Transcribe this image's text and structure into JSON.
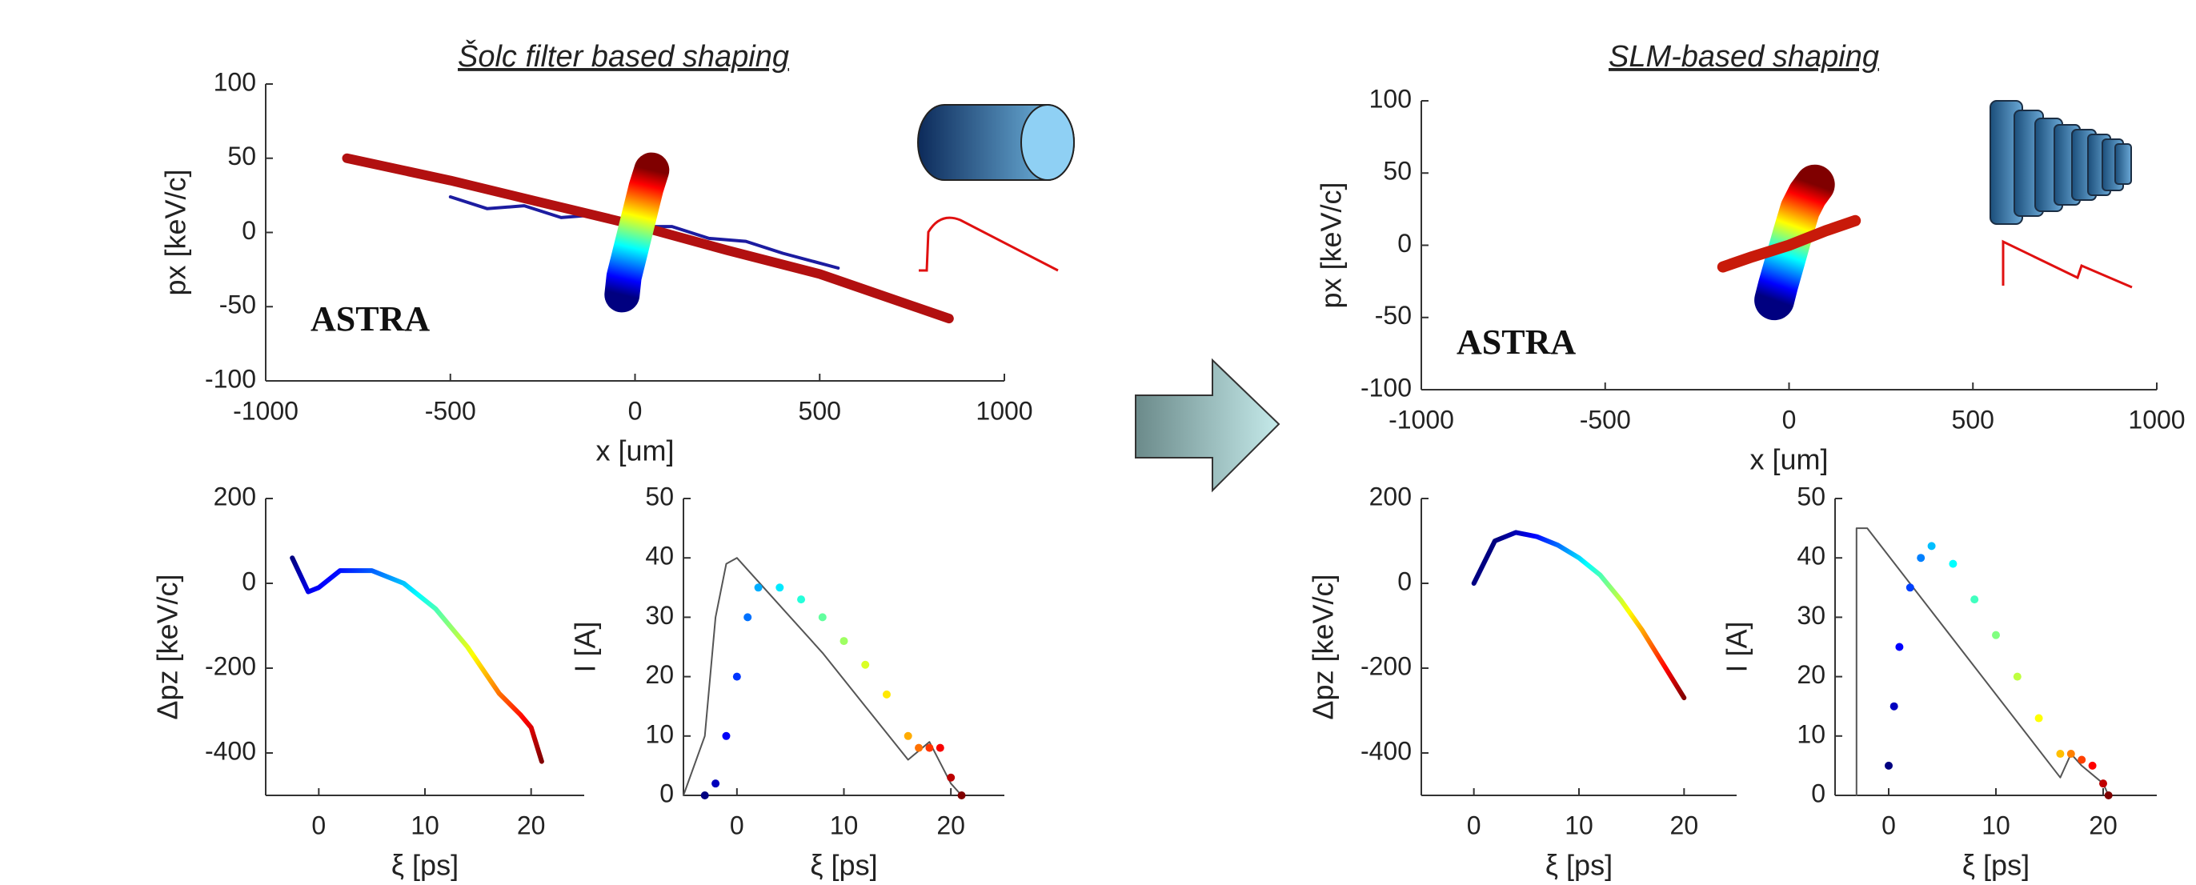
{
  "sections": [
    {
      "title": "Šolc filter based shaping"
    },
    {
      "title": "SLM-based shaping"
    }
  ],
  "chart_data": [
    {
      "type": "line",
      "xlabel": "x [um]",
      "ylabel": "px [keV/c]",
      "annotation": "ASTRA",
      "xlim": [
        -1000,
        1000
      ],
      "ylim": [
        -100,
        100
      ],
      "xticks": [
        -1000,
        -500,
        0,
        500,
        1000
      ],
      "yticks": [
        -100,
        -50,
        0,
        50,
        100
      ],
      "series": [
        {
          "mode": "line",
          "color": "#1c1ca0",
          "width": 4,
          "x": [
            -500,
            -400,
            -300,
            -200,
            -100,
            0,
            100,
            200,
            300,
            400,
            550
          ],
          "values": [
            24,
            16,
            18,
            10,
            12,
            4,
            4,
            -4,
            -6,
            -14,
            -24
          ]
        },
        {
          "mode": "line",
          "color": "#b21010",
          "width": 12,
          "x": [
            -780,
            -500,
            -250,
            0,
            250,
            500,
            850
          ],
          "values": [
            50,
            35,
            20,
            5,
            -12,
            -28,
            -58
          ]
        },
        {
          "mode": "line",
          "colormap": "jet",
          "width": 44,
          "x": [
            -35,
            -30,
            -15,
            0,
            15,
            30,
            45
          ],
          "values": [
            -42,
            -30,
            -15,
            0,
            15,
            30,
            42
          ]
        }
      ]
    },
    {
      "type": "line",
      "xlabel": "x [um]",
      "ylabel": "px [keV/c]",
      "annotation": "ASTRA",
      "xlim": [
        -1000,
        1000
      ],
      "ylim": [
        -100,
        100
      ],
      "xticks": [
        -1000,
        -500,
        0,
        500,
        1000
      ],
      "yticks": [
        -100,
        -50,
        0,
        50,
        100
      ],
      "series": [
        {
          "mode": "line",
          "colormap": "jet",
          "width": 50,
          "x": [
            -40,
            -30,
            -10,
            10,
            30,
            50,
            70
          ],
          "values": [
            -38,
            -28,
            -10,
            8,
            25,
            35,
            42
          ]
        },
        {
          "mode": "line",
          "color": "#c81a0a",
          "width": 14,
          "x": [
            -180,
            -100,
            0,
            100,
            180
          ],
          "values": [
            -15,
            -8,
            0,
            10,
            17
          ]
        }
      ]
    },
    {
      "type": "line",
      "xlabel": "ξ [ps]",
      "ylabel": "Δpz [keV/c]",
      "xlim": [
        -5,
        25
      ],
      "ylim": [
        -500,
        200
      ],
      "xticks": [
        0,
        10,
        20
      ],
      "yticks": [
        -400,
        -200,
        0,
        200
      ],
      "series": [
        {
          "mode": "line",
          "colormap": "jet",
          "width": 6,
          "x": [
            -2.5,
            -1,
            0,
            2,
            5,
            8,
            11,
            14,
            17,
            19,
            20,
            21
          ],
          "values": [
            60,
            -20,
            -10,
            30,
            30,
            0,
            -60,
            -150,
            -260,
            -310,
            -340,
            -420
          ]
        }
      ]
    },
    {
      "type": "scatter",
      "xlabel": "ξ [ps]",
      "ylabel": "I [A]",
      "xlim": [
        -5,
        25
      ],
      "ylim": [
        0,
        50
      ],
      "xticks": [
        0,
        10,
        20
      ],
      "yticks": [
        0,
        10,
        20,
        30,
        40,
        50
      ],
      "series": [
        {
          "mode": "line",
          "color": "#555555",
          "width": 2,
          "x": [
            -5,
            -3,
            -2,
            -1,
            0,
            4,
            8,
            12,
            16,
            18,
            20,
            21
          ],
          "values": [
            0,
            10,
            30,
            39,
            40,
            32,
            24,
            15,
            6,
            9,
            2,
            0
          ]
        },
        {
          "mode": "markers",
          "colormap": "jet",
          "x": [
            -3,
            -2,
            -1,
            0,
            1,
            2,
            4,
            6,
            8,
            10,
            12,
            14,
            16,
            17,
            18,
            19,
            20,
            21
          ],
          "values": [
            0,
            2,
            10,
            20,
            30,
            35,
            35,
            33,
            30,
            26,
            22,
            17,
            10,
            8,
            8,
            8,
            3,
            0
          ]
        }
      ]
    },
    {
      "type": "line",
      "xlabel": "ξ [ps]",
      "ylabel": "Δpz [keV/c]",
      "xlim": [
        -5,
        25
      ],
      "ylim": [
        -500,
        200
      ],
      "xticks": [
        0,
        10,
        20
      ],
      "yticks": [
        -400,
        -200,
        0,
        200
      ],
      "series": [
        {
          "mode": "line",
          "colormap": "jet",
          "width": 6,
          "x": [
            0,
            2,
            4,
            6,
            8,
            10,
            12,
            14,
            16,
            18,
            20
          ],
          "values": [
            0,
            100,
            120,
            110,
            90,
            60,
            20,
            -40,
            -110,
            -190,
            -270
          ]
        }
      ]
    },
    {
      "type": "scatter",
      "xlabel": "ξ [ps]",
      "ylabel": "I [A]",
      "xlim": [
        -5,
        25
      ],
      "ylim": [
        0,
        50
      ],
      "xticks": [
        0,
        10,
        20
      ],
      "yticks": [
        0,
        10,
        20,
        30,
        40,
        50
      ],
      "series": [
        {
          "mode": "line",
          "color": "#555555",
          "width": 2,
          "x": [
            -3,
            -3,
            -2,
            16,
            17,
            18,
            20,
            20.5
          ],
          "values": [
            0,
            45,
            45,
            3,
            7,
            5,
            2,
            0
          ]
        },
        {
          "mode": "markers",
          "colormap": "jet",
          "x": [
            0,
            0.5,
            1,
            2,
            3,
            4,
            6,
            8,
            10,
            12,
            14,
            16,
            17,
            18,
            19,
            20,
            20.5
          ],
          "values": [
            5,
            15,
            25,
            35,
            40,
            42,
            39,
            33,
            27,
            20,
            13,
            7,
            7,
            6,
            5,
            2,
            0
          ]
        }
      ]
    }
  ]
}
